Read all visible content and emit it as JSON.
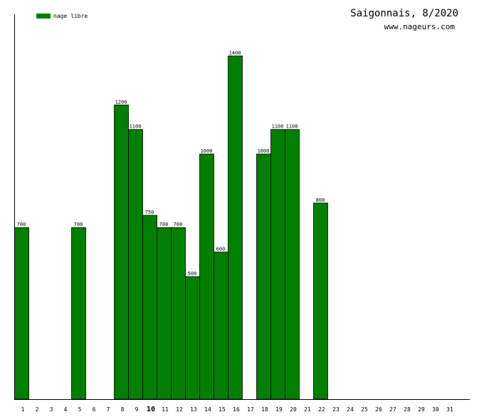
{
  "chart_data": {
    "type": "bar",
    "title": "Saigonnais, 8/2020",
    "subtitle": "www.nageurs.com",
    "legend": {
      "label": "nage libre",
      "position": "top-left"
    },
    "bar_color": "#007f00",
    "highlight_category": "10",
    "grid": false,
    "ylim": [
      0,
      1570
    ],
    "categories": [
      "1",
      "2",
      "3",
      "4",
      "5",
      "6",
      "7",
      "8",
      "9",
      "10",
      "11",
      "12",
      "13",
      "14",
      "15",
      "16",
      "17",
      "18",
      "19",
      "20",
      "21",
      "22",
      "23",
      "24",
      "25",
      "26",
      "27",
      "28",
      "29",
      "30",
      "31"
    ],
    "series": [
      {
        "name": "nage libre",
        "values": [
          700,
          0,
          0,
          0,
          700,
          0,
          0,
          1200,
          1100,
          750,
          700,
          700,
          500,
          1000,
          600,
          1400,
          0,
          1000,
          1100,
          1100,
          0,
          800,
          0,
          0,
          0,
          0,
          0,
          0,
          0,
          0,
          0
        ]
      }
    ]
  }
}
